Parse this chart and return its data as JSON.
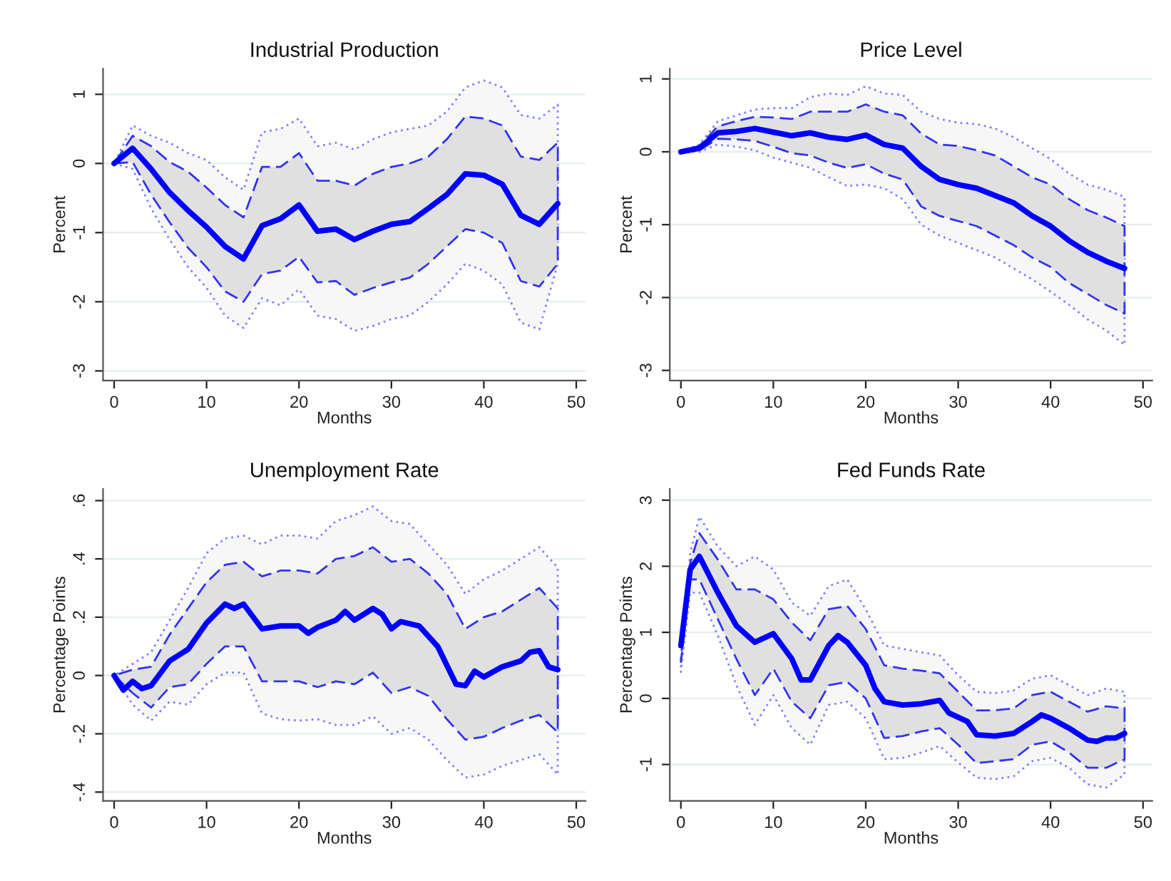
{
  "chart_data": [
    {
      "type": "line",
      "title": "Industrial Production",
      "xlabel": "Months",
      "ylabel": "Percent",
      "grid": "y",
      "x": [
        0,
        2,
        4,
        6,
        8,
        10,
        12,
        14,
        16,
        18,
        20,
        22,
        24,
        26,
        28,
        30,
        32,
        34,
        36,
        38,
        40,
        42,
        44,
        46,
        48
      ],
      "xlim": [
        -1.2,
        51
      ],
      "xticks": [
        0,
        10,
        20,
        30,
        40,
        50
      ],
      "ylim": [
        -3.14,
        1.37
      ],
      "yticks": [
        -3,
        -2,
        -1,
        0,
        1
      ],
      "series": [
        {
          "type": "area",
          "color": "#8080ff",
          "line_style": "dotted",
          "values": [
            null,
            null,
            null,
            null,
            null,
            null,
            null,
            null,
            null,
            null,
            null,
            null,
            null,
            null,
            null,
            null,
            null,
            null,
            null,
            null,
            null,
            null,
            null,
            null,
            null
          ],
          "lower": [
            0,
            -0.08,
            -0.65,
            -1.1,
            -1.5,
            -1.8,
            -2.2,
            -2.38,
            -1.95,
            -2.05,
            -1.82,
            -2.2,
            -2.25,
            -2.42,
            -2.35,
            -2.25,
            -2.2,
            -2.0,
            -1.75,
            -1.45,
            -1.55,
            -1.75,
            -2.3,
            -2.4,
            -1.45
          ],
          "upper": [
            0,
            0.55,
            0.4,
            0.3,
            0.15,
            0.05,
            -0.2,
            -0.38,
            0.45,
            0.5,
            0.65,
            0.25,
            0.3,
            0.2,
            0.35,
            0.45,
            0.5,
            0.55,
            0.75,
            1.1,
            1.2,
            1.1,
            0.7,
            0.65,
            0.85
          ]
        },
        {
          "type": "area",
          "color": "#3333ee",
          "line_style": "dashed",
          "values": [
            null,
            null,
            null,
            null,
            null,
            null,
            null,
            null,
            null,
            null,
            null,
            null,
            null,
            null,
            null,
            null,
            null,
            null,
            null,
            null,
            null,
            null,
            null,
            null,
            null
          ],
          "lower": [
            0,
            0.02,
            -0.45,
            -0.85,
            -1.22,
            -1.5,
            -1.85,
            -2.0,
            -1.6,
            -1.55,
            -1.35,
            -1.72,
            -1.7,
            -1.9,
            -1.8,
            -1.72,
            -1.65,
            -1.45,
            -1.2,
            -0.95,
            -1.0,
            -1.15,
            -1.7,
            -1.78,
            -1.45
          ],
          "upper": [
            0,
            0.4,
            0.25,
            0.02,
            -0.12,
            -0.35,
            -0.6,
            -0.78,
            -0.05,
            -0.05,
            0.15,
            -0.25,
            -0.25,
            -0.32,
            -0.15,
            -0.05,
            0.0,
            0.1,
            0.35,
            0.68,
            0.65,
            0.55,
            0.1,
            0.05,
            0.3
          ]
        },
        {
          "type": "line",
          "color": "#0000ff",
          "line_style": "solid",
          "values": [
            0,
            0.22,
            -0.08,
            -0.42,
            -0.68,
            -0.92,
            -1.2,
            -1.38,
            -0.9,
            -0.8,
            -0.6,
            -0.98,
            -0.95,
            -1.1,
            -0.98,
            -0.88,
            -0.84,
            -0.65,
            -0.45,
            -0.15,
            -0.17,
            -0.3,
            -0.75,
            -0.88,
            -0.58
          ]
        }
      ]
    },
    {
      "type": "line",
      "title": "Price Level",
      "xlabel": "Months",
      "ylabel": "Percent",
      "grid": "y",
      "x": [
        0,
        2,
        4,
        6,
        8,
        10,
        12,
        14,
        16,
        18,
        20,
        22,
        24,
        26,
        28,
        30,
        32,
        34,
        36,
        38,
        40,
        42,
        44,
        46,
        48
      ],
      "xlim": [
        -1.2,
        51
      ],
      "xticks": [
        0,
        10,
        20,
        30,
        40,
        50
      ],
      "ylim": [
        -3.14,
        1.14
      ],
      "yticks": [
        -3,
        -2,
        -1,
        0,
        1
      ],
      "series": [
        {
          "type": "area",
          "color": "#8080ff",
          "line_style": "dotted",
          "values": [
            null,
            null,
            null,
            null,
            null,
            null,
            null,
            null,
            null,
            null,
            null,
            null,
            null,
            null,
            null,
            null,
            null,
            null,
            null,
            null,
            null,
            null,
            null,
            null,
            null
          ],
          "lower": [
            0,
            0.0,
            0.1,
            0.07,
            0.02,
            -0.08,
            -0.15,
            -0.22,
            -0.35,
            -0.47,
            -0.45,
            -0.5,
            -0.65,
            -1.0,
            -1.15,
            -1.25,
            -1.35,
            -1.45,
            -1.6,
            -1.75,
            -1.92,
            -2.1,
            -2.3,
            -2.45,
            -2.65
          ],
          "upper": [
            0,
            0.1,
            0.42,
            0.5,
            0.58,
            0.6,
            0.6,
            0.75,
            0.8,
            0.78,
            0.9,
            0.8,
            0.78,
            0.55,
            0.45,
            0.4,
            0.38,
            0.32,
            0.2,
            0.05,
            -0.1,
            -0.3,
            -0.45,
            -0.52,
            -0.62
          ]
        },
        {
          "type": "area",
          "color": "#3333ee",
          "line_style": "dashed",
          "values": [
            null,
            null,
            null,
            null,
            null,
            null,
            null,
            null,
            null,
            null,
            null,
            null,
            null,
            null,
            null,
            null,
            null,
            null,
            null,
            null,
            null,
            null,
            null,
            null,
            null
          ],
          "lower": [
            0,
            0.02,
            0.18,
            0.17,
            0.15,
            0.07,
            -0.02,
            -0.05,
            -0.15,
            -0.22,
            -0.17,
            -0.3,
            -0.38,
            -0.75,
            -0.88,
            -0.95,
            -1.02,
            -1.15,
            -1.28,
            -1.45,
            -1.58,
            -1.8,
            -1.95,
            -2.1,
            -2.22
          ],
          "upper": [
            0,
            0.08,
            0.35,
            0.42,
            0.48,
            0.47,
            0.45,
            0.55,
            0.55,
            0.55,
            0.65,
            0.55,
            0.5,
            0.25,
            0.1,
            0.08,
            0.02,
            -0.05,
            -0.2,
            -0.35,
            -0.45,
            -0.65,
            -0.8,
            -0.9,
            -1.02
          ]
        },
        {
          "type": "line",
          "color": "#0000ff",
          "line_style": "solid",
          "values": [
            0,
            0.05,
            0.26,
            0.28,
            0.32,
            0.27,
            0.22,
            0.26,
            0.2,
            0.17,
            0.23,
            0.1,
            0.05,
            -0.2,
            -0.38,
            -0.45,
            -0.5,
            -0.6,
            -0.7,
            -0.88,
            -1.02,
            -1.22,
            -1.38,
            -1.5,
            -1.6
          ]
        }
      ]
    },
    {
      "type": "line",
      "title": "Unemployment Rate",
      "xlabel": "Months",
      "ylabel": "Percentage Points",
      "grid": "y",
      "x": [
        0,
        2,
        4,
        6,
        8,
        10,
        12,
        14,
        16,
        18,
        20,
        22,
        24,
        26,
        28,
        30,
        32,
        34,
        36,
        38,
        40,
        42,
        44,
        46,
        48
      ],
      "xlim": [
        -1.2,
        51
      ],
      "xticks": [
        0,
        10,
        20,
        30,
        40,
        50
      ],
      "ylim": [
        -0.43,
        0.64
      ],
      "yticks": [
        {
          "value": -0.4,
          "label": "-.4"
        },
        {
          "value": -0.2,
          "label": "-.2"
        },
        0,
        {
          "value": 0.2,
          "label": ".2"
        },
        {
          "value": 0.4,
          "label": ".4"
        },
        {
          "value": 0.6,
          "label": ".6"
        }
      ],
      "series": [
        {
          "type": "area",
          "color": "#8080ff",
          "line_style": "dotted",
          "values": [
            null,
            null,
            null,
            null,
            null,
            null,
            null,
            null,
            null,
            null,
            null,
            null,
            null,
            null,
            null,
            null,
            null,
            null,
            null,
            null,
            null,
            null,
            null,
            null,
            null
          ],
          "lower": [
            0,
            -0.1,
            -0.155,
            -0.09,
            -0.1,
            -0.03,
            0.01,
            0.01,
            -0.13,
            -0.15,
            -0.155,
            -0.15,
            -0.17,
            -0.17,
            -0.14,
            -0.2,
            -0.18,
            -0.22,
            -0.29,
            -0.35,
            -0.34,
            -0.31,
            -0.29,
            -0.27,
            -0.34
          ],
          "upper": [
            0,
            0.04,
            0.08,
            0.19,
            0.3,
            0.42,
            0.47,
            0.48,
            0.45,
            0.48,
            0.48,
            0.47,
            0.53,
            0.55,
            0.58,
            0.53,
            0.52,
            0.45,
            0.38,
            0.28,
            0.33,
            0.36,
            0.4,
            0.44,
            0.37
          ]
        },
        {
          "type": "area",
          "color": "#3333ee",
          "line_style": "dashed",
          "values": [
            null,
            null,
            null,
            null,
            null,
            null,
            null,
            null,
            null,
            null,
            null,
            null,
            null,
            null,
            null,
            null,
            null,
            null,
            null,
            null,
            null,
            null,
            null,
            null,
            null
          ],
          "lower": [
            0,
            -0.06,
            -0.11,
            -0.04,
            -0.03,
            0.04,
            0.1,
            0.1,
            -0.02,
            -0.02,
            -0.02,
            -0.04,
            -0.02,
            -0.03,
            0.01,
            -0.06,
            -0.04,
            -0.07,
            -0.15,
            -0.22,
            -0.21,
            -0.18,
            -0.155,
            -0.135,
            -0.195
          ],
          "upper": [
            0,
            0.02,
            0.03,
            0.14,
            0.23,
            0.32,
            0.38,
            0.39,
            0.34,
            0.36,
            0.36,
            0.35,
            0.4,
            0.41,
            0.44,
            0.39,
            0.4,
            0.35,
            0.28,
            0.16,
            0.2,
            0.22,
            0.26,
            0.3,
            0.23
          ]
        },
        {
          "type": "line",
          "color": "#0000ff",
          "line_style": "solid",
          "x": [
            0,
            1,
            2,
            3,
            4,
            6,
            8,
            10,
            12,
            13,
            14,
            16,
            18,
            20,
            21,
            22,
            24,
            25,
            26,
            28,
            29,
            30,
            31,
            33,
            35,
            37,
            38,
            39,
            40,
            42,
            44,
            45,
            46,
            47,
            48
          ],
          "values": [
            0,
            -0.05,
            -0.02,
            -0.045,
            -0.035,
            0.05,
            0.09,
            0.18,
            0.245,
            0.23,
            0.245,
            0.16,
            0.17,
            0.17,
            0.145,
            0.165,
            0.19,
            0.22,
            0.19,
            0.23,
            0.21,
            0.16,
            0.185,
            0.17,
            0.1,
            -0.03,
            -0.035,
            0.015,
            -0.005,
            0.03,
            0.05,
            0.08,
            0.085,
            0.03,
            0.02
          ]
        }
      ]
    },
    {
      "type": "line",
      "title": "Fed Funds Rate",
      "xlabel": "Months",
      "ylabel": "Percentage Points",
      "grid": "y",
      "x": [
        0,
        1,
        2,
        4,
        6,
        8,
        10,
        12,
        14,
        16,
        18,
        20,
        22,
        24,
        26,
        28,
        30,
        32,
        34,
        36,
        38,
        40,
        42,
        44,
        46,
        48
      ],
      "xlim": [
        -1.2,
        51
      ],
      "xticks": [
        0,
        10,
        20,
        30,
        40,
        50
      ],
      "ylim": [
        -1.55,
        3.17
      ],
      "yticks": [
        -1,
        0,
        1,
        2,
        3
      ],
      "series": [
        {
          "type": "area",
          "color": "#8080ff",
          "line_style": "dotted",
          "values": [
            null,
            null,
            null,
            null,
            null,
            null,
            null,
            null,
            null,
            null,
            null,
            null,
            null,
            null,
            null,
            null,
            null,
            null,
            null,
            null,
            null,
            null,
            null,
            null,
            null,
            null
          ],
          "lower": [
            0.4,
            1.6,
            1.6,
            0.95,
            0.2,
            -0.4,
            0.05,
            -0.45,
            -0.7,
            -0.1,
            -0.05,
            -0.3,
            -0.92,
            -0.9,
            -0.82,
            -0.72,
            -0.97,
            -1.2,
            -1.22,
            -1.18,
            -0.95,
            -0.9,
            -1.05,
            -1.3,
            -1.35,
            -1.15
          ],
          "upper": [
            0.5,
            2.2,
            2.75,
            2.3,
            2.0,
            2.15,
            1.95,
            1.45,
            1.25,
            1.7,
            1.8,
            1.35,
            0.8,
            0.75,
            0.7,
            0.65,
            0.35,
            0.1,
            0.08,
            0.12,
            0.3,
            0.35,
            0.2,
            0.05,
            0.15,
            0.1
          ]
        },
        {
          "type": "area",
          "color": "#3333ee",
          "line_style": "dashed",
          "values": [
            null,
            null,
            null,
            null,
            null,
            null,
            null,
            null,
            null,
            null,
            null,
            null,
            null,
            null,
            null,
            null,
            null,
            null,
            null,
            null,
            null,
            null,
            null,
            null,
            null,
            null
          ],
          "lower": [
            0.55,
            1.8,
            1.8,
            1.2,
            0.6,
            0.05,
            0.45,
            -0.05,
            -0.3,
            0.2,
            0.25,
            0.0,
            -0.6,
            -0.57,
            -0.5,
            -0.45,
            -0.7,
            -0.98,
            -0.95,
            -0.92,
            -0.7,
            -0.65,
            -0.82,
            -1.05,
            -1.05,
            -0.92
          ],
          "upper": [
            0.6,
            2.05,
            2.5,
            2.1,
            1.65,
            1.65,
            1.5,
            1.15,
            0.88,
            1.35,
            1.4,
            1.05,
            0.5,
            0.45,
            0.42,
            0.38,
            0.1,
            -0.18,
            -0.18,
            -0.15,
            0.05,
            0.1,
            -0.05,
            -0.2,
            -0.12,
            -0.15
          ]
        },
        {
          "type": "line",
          "color": "#0000ff",
          "line_style": "solid",
          "x": [
            0,
            1,
            2,
            4,
            6,
            8,
            10,
            12,
            13,
            14,
            16,
            17,
            18,
            20,
            21,
            22,
            24,
            26,
            28,
            29,
            31,
            32,
            34,
            36,
            38,
            39,
            40,
            42,
            44,
            45,
            46,
            47,
            48
          ],
          "values": [
            0.8,
            1.95,
            2.15,
            1.6,
            1.1,
            0.85,
            0.98,
            0.6,
            0.28,
            0.28,
            0.8,
            0.95,
            0.85,
            0.5,
            0.15,
            -0.05,
            -0.1,
            -0.08,
            -0.03,
            -0.22,
            -0.35,
            -0.55,
            -0.57,
            -0.53,
            -0.35,
            -0.25,
            -0.3,
            -0.45,
            -0.63,
            -0.65,
            -0.6,
            -0.6,
            -0.53
          ]
        }
      ]
    }
  ]
}
